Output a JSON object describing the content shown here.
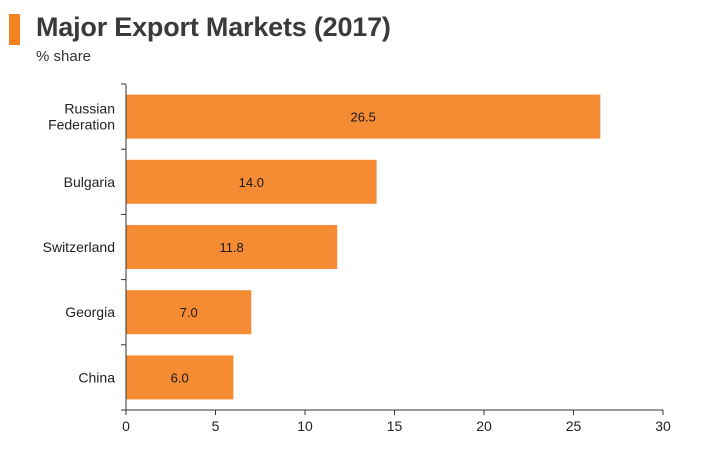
{
  "colors": {
    "accent": "#F58220",
    "bar": "#F58B33",
    "axis": "#333333"
  },
  "chart_data": {
    "type": "bar",
    "orientation": "horizontal",
    "title": "Major Export Markets (2017)",
    "subtitle": "% share",
    "categories": [
      [
        "Russian",
        "Federation"
      ],
      [
        "Bulgaria"
      ],
      [
        "Switzerland"
      ],
      [
        "Georgia"
      ],
      [
        "China"
      ]
    ],
    "values": [
      26.5,
      14.0,
      11.8,
      7.0,
      6.0
    ],
    "value_labels": [
      "26.5",
      "14.0",
      "11.8",
      "7.0",
      "6.0"
    ],
    "xlim": [
      0,
      30
    ],
    "xticks": [
      0,
      5,
      10,
      15,
      20,
      25,
      30
    ],
    "xlabel": "",
    "ylabel": "",
    "grid": false,
    "legend": "none"
  }
}
